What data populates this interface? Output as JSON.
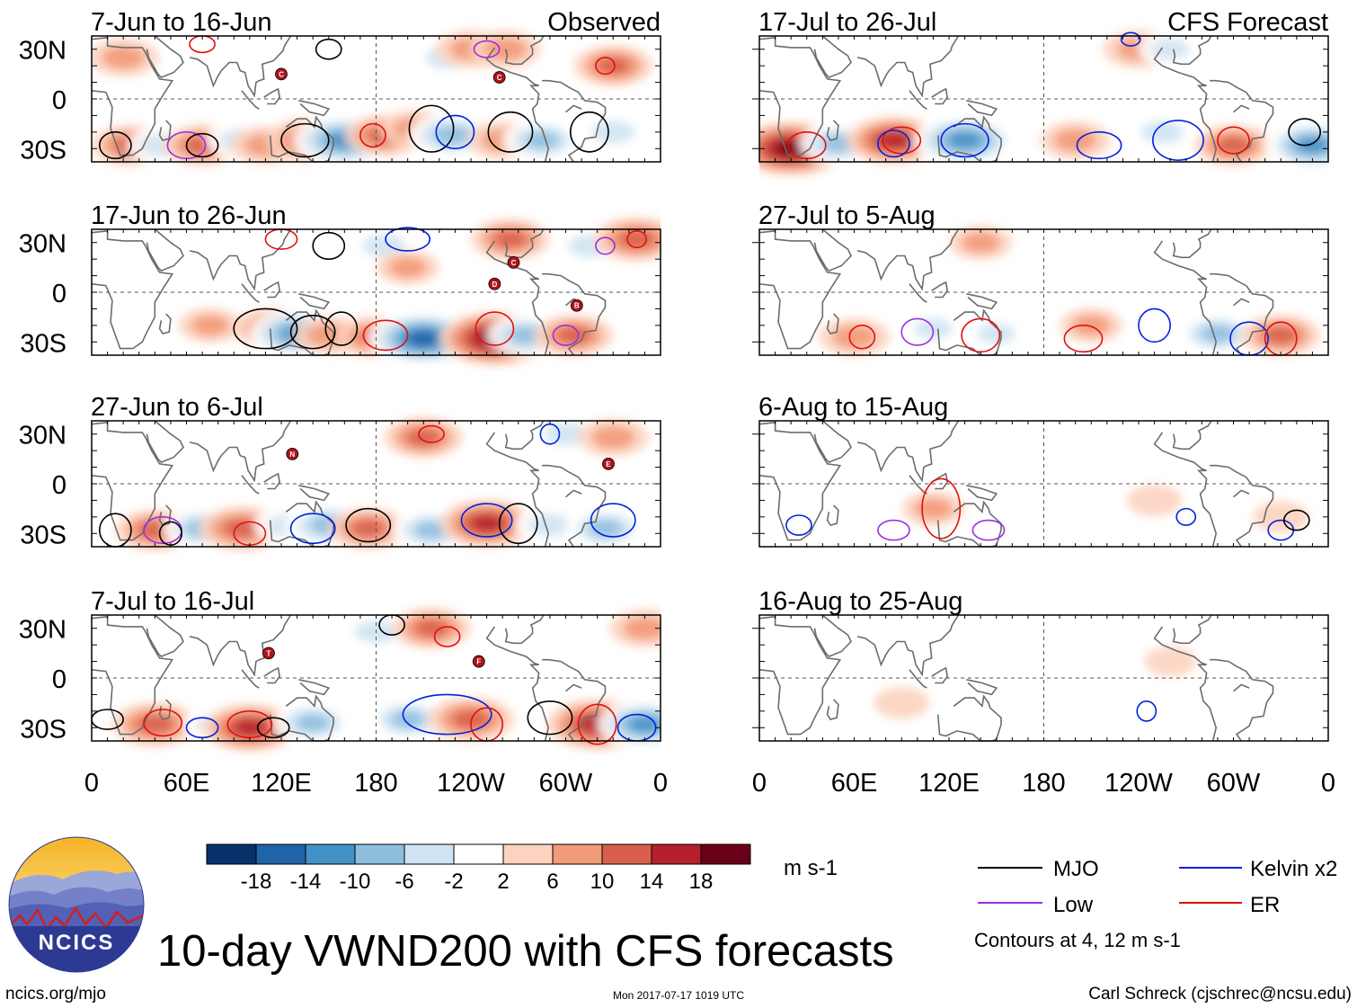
{
  "title": "10-day VWND200 with CFS forecasts",
  "organization": "NCICS",
  "website": "ncics.org/mjo",
  "timestamp": "Mon 2017-07-17 1019 UTC",
  "credit": "Carl Schreck (cjschrec@ncsu.edu)",
  "colorbar": {
    "unit": "m s-1",
    "tick_labels": [
      "-18",
      "-14",
      "-10",
      "-6",
      "-2",
      "2",
      "6",
      "10",
      "14",
      "18"
    ],
    "colors": [
      "#08306b",
      "#1f63a8",
      "#4391c6",
      "#8ebfdf",
      "#cfe3f2",
      "#ffffff",
      "#fdd3bf",
      "#f29a79",
      "#d95f4d",
      "#b51f2e",
      "#6a0017"
    ]
  },
  "legend": {
    "items": [
      {
        "label": "MJO",
        "color": "#000000"
      },
      {
        "label": "Kelvin x2",
        "color": "#0022dd"
      },
      {
        "label": "Low",
        "color": "#9b30e0"
      },
      {
        "label": "ER",
        "color": "#e01010"
      }
    ],
    "note": "Contours at 4, 12 m s-1"
  },
  "axes": {
    "lat_labels": [
      "30N",
      "0",
      "30S"
    ],
    "lon_labels": [
      "0",
      "60E",
      "120E",
      "180",
      "120W",
      "60W",
      "0"
    ]
  },
  "panels": {
    "left": [
      {
        "period": "7-Jun to 16-Jun",
        "tag": "Observed"
      },
      {
        "period": "17-Jun to 26-Jun",
        "tag": ""
      },
      {
        "period": "27-Jun to 6-Jul",
        "tag": ""
      },
      {
        "period": "7-Jul to 16-Jul",
        "tag": ""
      }
    ],
    "right": [
      {
        "period": "17-Jul to 26-Jul",
        "tag": "CFS Forecast"
      },
      {
        "period": "27-Jul to 5-Aug",
        "tag": ""
      },
      {
        "period": "6-Aug to 15-Aug",
        "tag": ""
      },
      {
        "period": "16-Aug to 25-Aug",
        "tag": ""
      }
    ]
  },
  "storm_letters": {
    "p0": [
      "C",
      "C"
    ],
    "p1": [
      "D",
      "C",
      "B"
    ],
    "p2": [
      "N",
      "E"
    ],
    "p3": [
      "T",
      "F"
    ]
  },
  "chart_data": [
    {
      "type": "heatmap",
      "title": "7-Jun to 16-Jun",
      "subtitle": "Observed",
      "variable": "200-hPa meridional wind, 10-day mean (m s-1)",
      "x_range_deg_east": [
        0,
        360
      ],
      "y_range_deg": [
        -38,
        38
      ],
      "xticks": [
        "0",
        "60E",
        "120E",
        "180",
        "120W",
        "60W",
        "0"
      ],
      "yticks": [
        "30N",
        "0",
        "30S"
      ],
      "features": [
        {
          "lon": 25,
          "lat": -28,
          "v": 10
        },
        {
          "lon": 45,
          "lat": -28,
          "v": -8
        },
        {
          "lon": 70,
          "lat": -28,
          "v": 10
        },
        {
          "lon": 95,
          "lat": -25,
          "v": -8
        },
        {
          "lon": 110,
          "lat": -28,
          "v": 8
        },
        {
          "lon": 138,
          "lat": -25,
          "v": 12
        },
        {
          "lon": 160,
          "lat": -25,
          "v": -16
        },
        {
          "lon": 185,
          "lat": -22,
          "v": 10
        },
        {
          "lon": 205,
          "lat": -18,
          "v": 8
        },
        {
          "lon": 228,
          "lat": -22,
          "v": -12
        },
        {
          "lon": 260,
          "lat": -25,
          "v": 8
        },
        {
          "lon": 285,
          "lat": -25,
          "v": -10
        },
        {
          "lon": 330,
          "lat": -20,
          "v": -8
        },
        {
          "lon": 225,
          "lat": 25,
          "v": -8
        },
        {
          "lon": 240,
          "lat": 30,
          "v": 8
        },
        {
          "lon": 262,
          "lat": 30,
          "v": 8
        },
        {
          "lon": 330,
          "lat": 20,
          "v": 10
        },
        {
          "lon": 20,
          "lat": 25,
          "v": 8
        }
      ]
    },
    {
      "type": "heatmap",
      "title": "17-Jun to 26-Jun",
      "features": [
        {
          "lon": 115,
          "lat": -22,
          "v": 10
        },
        {
          "lon": 130,
          "lat": -25,
          "v": -14
        },
        {
          "lon": 150,
          "lat": -26,
          "v": 8
        },
        {
          "lon": 180,
          "lat": -27,
          "v": 10
        },
        {
          "lon": 210,
          "lat": -28,
          "v": -18
        },
        {
          "lon": 255,
          "lat": -28,
          "v": 18
        },
        {
          "lon": 275,
          "lat": -26,
          "v": -10
        },
        {
          "lon": 305,
          "lat": -26,
          "v": 10
        },
        {
          "lon": 75,
          "lat": -20,
          "v": 6
        },
        {
          "lon": 185,
          "lat": 28,
          "v": -8
        },
        {
          "lon": 265,
          "lat": 32,
          "v": 10
        },
        {
          "lon": 315,
          "lat": 28,
          "v": -8
        },
        {
          "lon": 345,
          "lat": 32,
          "v": 12
        },
        {
          "lon": 200,
          "lat": 15,
          "v": 6
        }
      ]
    },
    {
      "type": "heatmap",
      "title": "27-Jun to 6-Jul",
      "features": [
        {
          "lon": 40,
          "lat": -28,
          "v": 10
        },
        {
          "lon": 70,
          "lat": -27,
          "v": -10
        },
        {
          "lon": 95,
          "lat": -27,
          "v": 12
        },
        {
          "lon": 125,
          "lat": -25,
          "v": -8
        },
        {
          "lon": 150,
          "lat": -25,
          "v": -12
        },
        {
          "lon": 175,
          "lat": -27,
          "v": 10
        },
        {
          "lon": 215,
          "lat": -28,
          "v": -10
        },
        {
          "lon": 250,
          "lat": -24,
          "v": 14
        },
        {
          "lon": 290,
          "lat": -25,
          "v": -8
        },
        {
          "lon": 325,
          "lat": -27,
          "v": -10
        },
        {
          "lon": 210,
          "lat": 28,
          "v": 10
        },
        {
          "lon": 300,
          "lat": 30,
          "v": -8
        },
        {
          "lon": 330,
          "lat": 28,
          "v": 8
        }
      ]
    },
    {
      "type": "heatmap",
      "title": "7-Jul to 16-Jul",
      "features": [
        {
          "lon": 40,
          "lat": -28,
          "v": 12
        },
        {
          "lon": 80,
          "lat": -28,
          "v": -8
        },
        {
          "lon": 100,
          "lat": -30,
          "v": 14
        },
        {
          "lon": 140,
          "lat": -27,
          "v": -10
        },
        {
          "lon": 200,
          "lat": -25,
          "v": -10
        },
        {
          "lon": 240,
          "lat": -25,
          "v": 12
        },
        {
          "lon": 305,
          "lat": -28,
          "v": -6
        },
        {
          "lon": 320,
          "lat": -28,
          "v": 16
        },
        {
          "lon": 350,
          "lat": -28,
          "v": -14
        },
        {
          "lon": 180,
          "lat": 28,
          "v": -8
        },
        {
          "lon": 215,
          "lat": 30,
          "v": 10
        },
        {
          "lon": 350,
          "lat": 30,
          "v": 8
        }
      ]
    },
    {
      "type": "heatmap",
      "title": "17-Jul to 26-Jul",
      "subtitle": "CFS Forecast",
      "features": [
        {
          "lon": 20,
          "lat": -30,
          "v": 18
        },
        {
          "lon": 50,
          "lat": -27,
          "v": -10
        },
        {
          "lon": 85,
          "lat": -25,
          "v": 14
        },
        {
          "lon": 130,
          "lat": -25,
          "v": -16
        },
        {
          "lon": 200,
          "lat": -25,
          "v": 8
        },
        {
          "lon": 255,
          "lat": -20,
          "v": -8
        },
        {
          "lon": 300,
          "lat": -28,
          "v": 10
        },
        {
          "lon": 350,
          "lat": -28,
          "v": -14
        },
        {
          "lon": 240,
          "lat": 30,
          "v": 8
        },
        {
          "lon": 260,
          "lat": 30,
          "v": -6
        }
      ]
    },
    {
      "type": "heatmap",
      "title": "27-Jul to 5-Aug",
      "features": [
        {
          "lon": 60,
          "lat": -27,
          "v": 8
        },
        {
          "lon": 110,
          "lat": -22,
          "v": -6
        },
        {
          "lon": 150,
          "lat": -25,
          "v": -6
        },
        {
          "lon": 210,
          "lat": -20,
          "v": 6
        },
        {
          "lon": 290,
          "lat": -25,
          "v": -10
        },
        {
          "lon": 330,
          "lat": -26,
          "v": 10
        },
        {
          "lon": 140,
          "lat": 30,
          "v": 6
        },
        {
          "lon": 200,
          "lat": 25,
          "v": -4
        }
      ]
    },
    {
      "type": "heatmap",
      "title": "6-Aug to 15-Aug",
      "features": [
        {
          "lon": 40,
          "lat": -10,
          "v": -4
        },
        {
          "lon": 110,
          "lat": -15,
          "v": 6
        },
        {
          "lon": 160,
          "lat": -20,
          "v": -4
        },
        {
          "lon": 250,
          "lat": -10,
          "v": 4
        },
        {
          "lon": 300,
          "lat": 25,
          "v": -4
        },
        {
          "lon": 330,
          "lat": -20,
          "v": 4
        }
      ]
    },
    {
      "type": "heatmap",
      "title": "16-Aug to 25-Aug",
      "features": [
        {
          "lon": 50,
          "lat": -15,
          "v": -4
        },
        {
          "lon": 90,
          "lat": -15,
          "v": 4
        },
        {
          "lon": 200,
          "lat": -20,
          "v": -3
        },
        {
          "lon": 260,
          "lat": 10,
          "v": 3
        },
        {
          "lon": 330,
          "lat": -20,
          "v": -4
        }
      ]
    }
  ]
}
